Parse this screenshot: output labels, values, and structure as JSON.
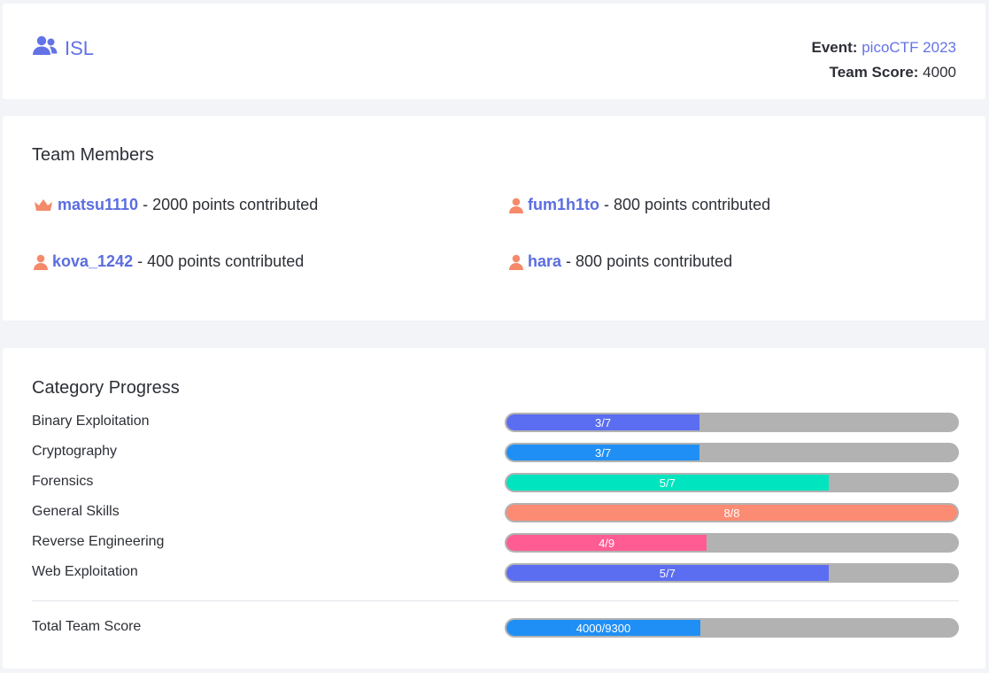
{
  "header": {
    "team_name": "ISL",
    "event_label": "Event:",
    "event_name": "picoCTF 2023",
    "score_label": "Team Score:",
    "score_value": "4000"
  },
  "members": {
    "title": "Team Members",
    "items": [
      {
        "name": "matsu1110",
        "points_text": "2000 points contributed",
        "icon": "crown-icon",
        "icon_color": "#f58a6b"
      },
      {
        "name": "fum1h1to",
        "points_text": "800 points contributed",
        "icon": "person-icon",
        "icon_color": "#f58a6b"
      },
      {
        "name": "kova_1242",
        "points_text": "400 points contributed",
        "icon": "person-icon",
        "icon_color": "#f58a6b"
      },
      {
        "name": "hara",
        "points_text": "800 points contributed",
        "icon": "person-icon",
        "icon_color": "#f58a6b"
      }
    ],
    "separator": "-"
  },
  "progress": {
    "title": "Category Progress",
    "categories": [
      {
        "label": "Binary Exploitation",
        "text": "3/7",
        "solved": 3,
        "total": 7,
        "color": "#5b6df0"
      },
      {
        "label": "Cryptography",
        "text": "3/7",
        "solved": 3,
        "total": 7,
        "color": "#1f8ff5"
      },
      {
        "label": "Forensics",
        "text": "5/7",
        "solved": 5,
        "total": 7,
        "color": "#00e5bf"
      },
      {
        "label": "General Skills",
        "text": "8/8",
        "solved": 8,
        "total": 8,
        "color": "#fc8b73"
      },
      {
        "label": "Reverse Engineering",
        "text": "4/9",
        "solved": 4,
        "total": 9,
        "color": "#ff5c93"
      },
      {
        "label": "Web Exploitation",
        "text": "5/7",
        "solved": 5,
        "total": 7,
        "color": "#5b6df0"
      }
    ],
    "total": {
      "label": "Total Team Score",
      "text": "4000/9300",
      "solved": 4000,
      "total": 9300,
      "color": "#1f8ff5"
    }
  },
  "colors": {
    "accent": "#6373e6",
    "track": "#b2b2b2"
  }
}
